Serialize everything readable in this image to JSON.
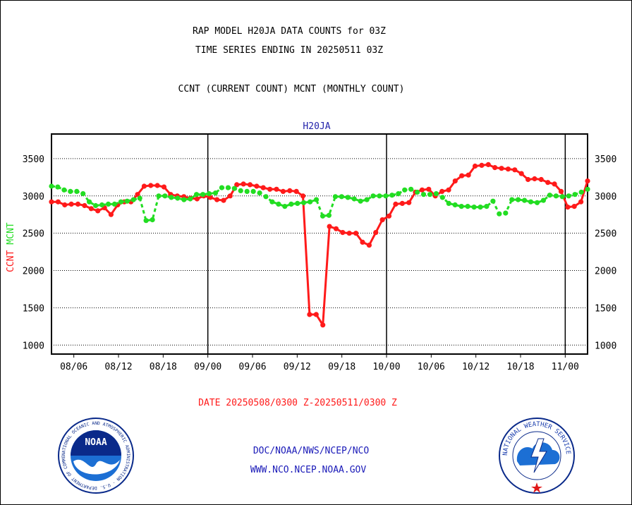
{
  "header": {
    "title1": "RAP MODEL H20JA DATA COUNTS for 03Z",
    "title2": "TIME SERIES ENDING IN 20250511 03Z",
    "subtitle": "CCNT (CURRENT COUNT) MCNT (MONTHLY COUNT)"
  },
  "footer": {
    "date_range": "DATE 20250508/0300 Z-20250511/0300 Z",
    "org_path": "DOC/NOAA/NWS/NCEP/NCO",
    "website": "WWW.NCO.NCEP.NOAA.GOV"
  },
  "logos": {
    "noaa_text": "NOAA",
    "noaa_ring": "NATIONAL OCEANIC AND ATMOSPHERIC ADMINISTRATION · U.S. DEPARTMENT OF COMMERCE",
    "nws_ring": "NATIONAL WEATHER SERVICE"
  },
  "colors": {
    "ccnt": "#ff1a1a",
    "mcnt": "#22dd22",
    "title_blue": "#2222aa",
    "link_blue": "#1a1ab8"
  },
  "chart_data": {
    "type": "line",
    "title": "H20JA",
    "ylabel_series": [
      "CCNT",
      "MCNT"
    ],
    "ylim": [
      880,
      3830
    ],
    "yticks": [
      1000,
      1500,
      2000,
      2500,
      3000,
      3500
    ],
    "xlim": [
      0,
      96
    ],
    "xticks": [
      {
        "x": 4,
        "label": "08/06"
      },
      {
        "x": 12,
        "label": "08/12"
      },
      {
        "x": 20,
        "label": "08/18"
      },
      {
        "x": 28,
        "label": "09/00"
      },
      {
        "x": 36,
        "label": "09/06"
      },
      {
        "x": 44,
        "label": "09/12"
      },
      {
        "x": 52,
        "label": "09/18"
      },
      {
        "x": 60,
        "label": "10/00"
      },
      {
        "x": 68,
        "label": "10/06"
      },
      {
        "x": 76,
        "label": "10/12"
      },
      {
        "x": 84,
        "label": "10/18"
      },
      {
        "x": 92,
        "label": "11/00"
      }
    ],
    "day_boundaries": [
      28,
      60,
      92
    ],
    "grid": true,
    "series": [
      {
        "name": "CCNT",
        "color": "#ff1a1a",
        "values": [
          2920,
          2920,
          2880,
          2890,
          2890,
          2870,
          2830,
          2800,
          2840,
          2750,
          2880,
          2920,
          2920,
          3020,
          3130,
          3140,
          3140,
          3120,
          3020,
          3000,
          2990,
          2970,
          2960,
          3000,
          2980,
          2950,
          2940,
          3000,
          3150,
          3160,
          3150,
          3130,
          3110,
          3090,
          3090,
          3060,
          3070,
          3060,
          3000,
          1410,
          1410,
          1270,
          2590,
          2560,
          2510,
          2500,
          2500,
          2380,
          2340,
          2510,
          2680,
          2730,
          2890,
          2900,
          2910,
          3050,
          3080,
          3090,
          3000,
          3060,
          3080,
          3200,
          3270,
          3280,
          3400,
          3410,
          3420,
          3380,
          3370,
          3360,
          3350,
          3300,
          3220,
          3230,
          3220,
          3180,
          3160,
          3060,
          2850,
          2860,
          2920,
          3200
        ]
      },
      {
        "name": "MCNT",
        "color": "#22dd22",
        "values": [
          3130,
          3120,
          3080,
          3060,
          3060,
          3030,
          2920,
          2870,
          2880,
          2890,
          2890,
          2920,
          2930,
          2950,
          2970,
          2670,
          2680,
          3000,
          3000,
          2980,
          2970,
          2950,
          2960,
          3020,
          3020,
          3030,
          3040,
          3110,
          3110,
          3100,
          3070,
          3060,
          3060,
          3040,
          2990,
          2920,
          2890,
          2860,
          2890,
          2900,
          2910,
          2920,
          2950,
          2730,
          2740,
          2990,
          2990,
          2980,
          2960,
          2930,
          2950,
          3000,
          3000,
          3000,
          3010,
          3030,
          3080,
          3090,
          3050,
          3020,
          3020,
          3030,
          2980,
          2900,
          2880,
          2860,
          2860,
          2850,
          2850,
          2860,
          2930,
          2760,
          2770,
          2950,
          2950,
          2940,
          2920,
          2910,
          2940,
          3010,
          3000,
          2990,
          3000,
          3020,
          3050,
          3090
        ]
      }
    ]
  }
}
